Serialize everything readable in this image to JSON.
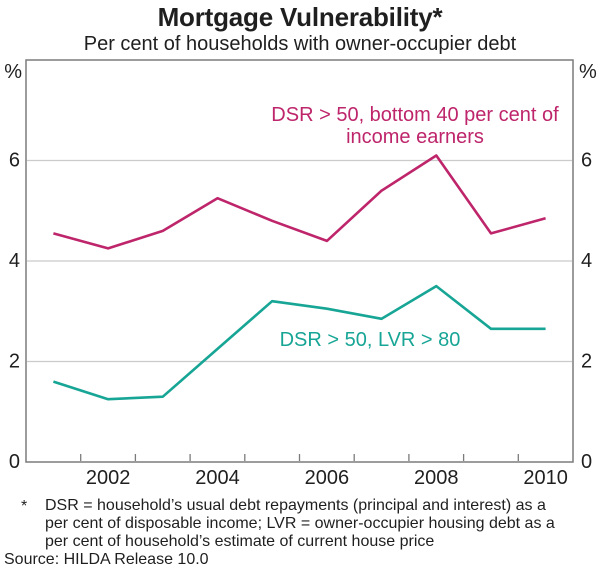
{
  "title": "Mortgage Vulnerability*",
  "subtitle": "Per cent of households with owner-occupier debt",
  "unit_left": "%",
  "unit_right": "%",
  "colors": {
    "series1": "#BE256B",
    "series2": "#17A595",
    "grid": "#CBCBCB",
    "frame": "#7B7B7B",
    "text": "#1F1F1F"
  },
  "chart_data": {
    "type": "line",
    "x": [
      2001,
      2002,
      2003,
      2004,
      2005,
      2006,
      2007,
      2008,
      2009,
      2010
    ],
    "series": [
      {
        "name": "DSR > 50, bottom 40 per cent of income earners",
        "color_key": "series1",
        "values": [
          4.55,
          4.25,
          4.6,
          5.25,
          4.8,
          4.4,
          5.4,
          6.1,
          4.55,
          4.85
        ]
      },
      {
        "name": "DSR > 50, LVR > 80",
        "color_key": "series2",
        "values": [
          1.6,
          1.25,
          1.3,
          2.25,
          3.2,
          3.05,
          2.85,
          3.5,
          2.65,
          2.65
        ]
      }
    ],
    "ylim": [
      0,
      8
    ],
    "yticks": [
      0,
      2,
      4,
      6
    ],
    "xtick_labels": [
      2002,
      2004,
      2006,
      2008,
      2010
    ],
    "grid": "horizontal",
    "legend": "inline-annotations",
    "annotations": [
      {
        "lines": [
          "DSR > 50, bottom 40 per cent of",
          "income earners"
        ],
        "color_key": "series1"
      },
      {
        "lines": [
          "DSR > 50, LVR > 80"
        ],
        "color_key": "series2"
      }
    ]
  },
  "footnote": {
    "marker": "*",
    "lines": [
      "DSR = household’s usual debt repayments (principal and interest) as a",
      "per cent of disposable income; LVR = owner-occupier housing debt as a",
      "per cent of household’s estimate of current house price"
    ],
    "source": "Source: HILDA Release 10.0"
  }
}
